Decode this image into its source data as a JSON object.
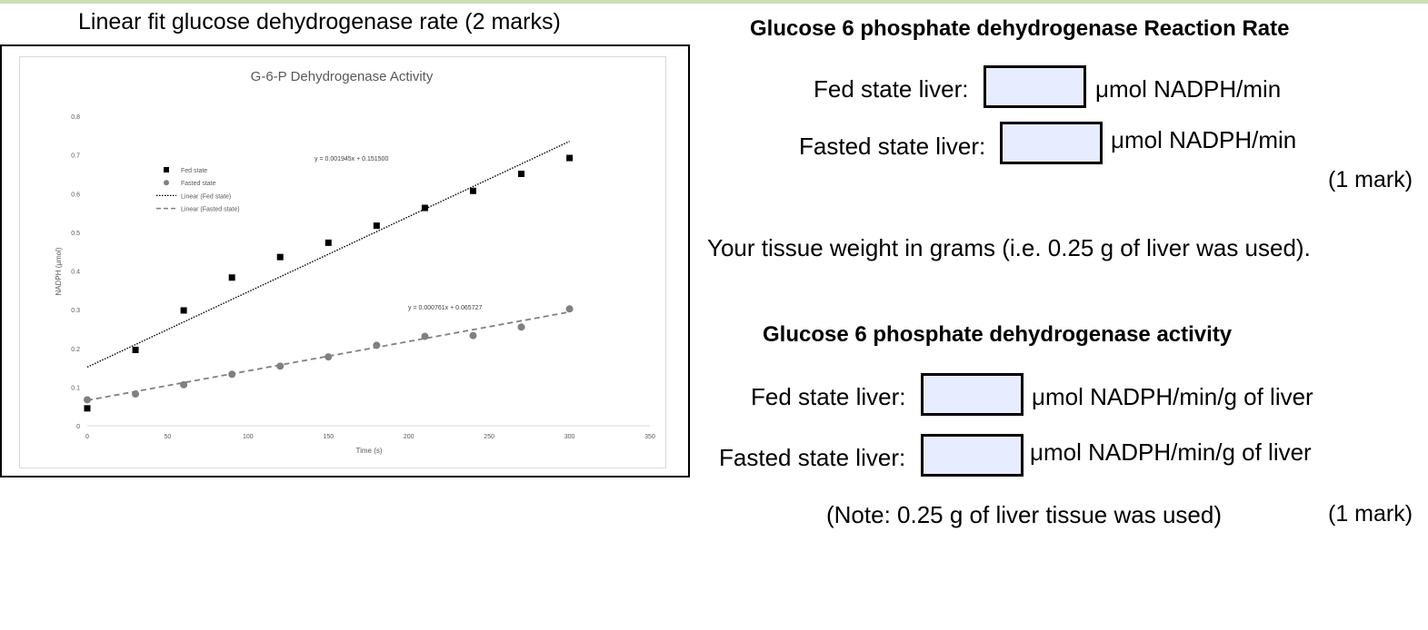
{
  "left_panel": {
    "heading": "Linear fit glucose dehydrogenase rate (2 marks)"
  },
  "chart_data": {
    "type": "scatter",
    "title": "G-6-P Dehydrogenase Activity",
    "xlabel": "Time (s)",
    "ylabel": "NADPH (μmol)",
    "xlim": [
      0,
      350
    ],
    "ylim": [
      0,
      0.8
    ],
    "xticks": [
      "0",
      "50",
      "100",
      "150",
      "200",
      "250",
      "300",
      "350"
    ],
    "yticks": [
      "0",
      "0.1",
      "0.2",
      "0.3",
      "0.4",
      "0.5",
      "0.6",
      "0.7",
      "0.8"
    ],
    "x": [
      0,
      30,
      60,
      90,
      120,
      150,
      180,
      210,
      240,
      270,
      300
    ],
    "series": [
      {
        "name": "Fed state",
        "marker": "square",
        "color": "#000000",
        "values": [
          0.045,
          0.196,
          0.298,
          0.383,
          0.436,
          0.473,
          0.517,
          0.563,
          0.607,
          0.651,
          0.692
        ]
      },
      {
        "name": "Fasted state",
        "marker": "circle",
        "color": "#808080",
        "values": [
          0.067,
          0.082,
          0.106,
          0.133,
          0.154,
          0.178,
          0.208,
          0.231,
          0.233,
          0.255,
          0.302
        ]
      }
    ],
    "trendlines": [
      {
        "name": "Linear (Fed state)",
        "slope": 0.001945,
        "intercept": 0.1515,
        "style": "dotted",
        "color": "#000000",
        "equation": "y = 0.001945x + 0.151500"
      },
      {
        "name": "Linear (Fasted state)",
        "slope": 0.000761,
        "intercept": 0.065727,
        "style": "dashed",
        "color": "#808080",
        "equation": "y = 0.000761x + 0.065727"
      }
    ],
    "legend": [
      "Fed state",
      "Fasted state",
      "Linear (Fed state)",
      "Linear (Fasted state)"
    ],
    "legend_position": "top-left",
    "grid": false
  },
  "rate_section": {
    "heading": "Glucose 6 phosphate dehydrogenase Reaction Rate",
    "fed_label": "Fed state liver:",
    "fed_unit": "μmol NADPH/min",
    "fed_value": "",
    "fasted_label": "Fasted state liver:",
    "fasted_unit": "μmol NADPH/min",
    "fasted_value": "",
    "marks": "(1 mark)"
  },
  "tissue_text": "Your tissue weight in grams (i.e. 0.25 g of liver was used).",
  "activity_section": {
    "heading": "Glucose 6 phosphate dehydrogenase activity",
    "fed_label": "Fed state liver:",
    "fed_unit": "μmol NADPH/min/g of liver",
    "fed_value": "",
    "fasted_label": "Fasted state liver:",
    "fasted_unit": "μmol NADPH/min/g of liver",
    "fasted_value": "",
    "note": "(Note: 0.25 g of liver tissue was used)",
    "marks": "(1 mark)"
  }
}
